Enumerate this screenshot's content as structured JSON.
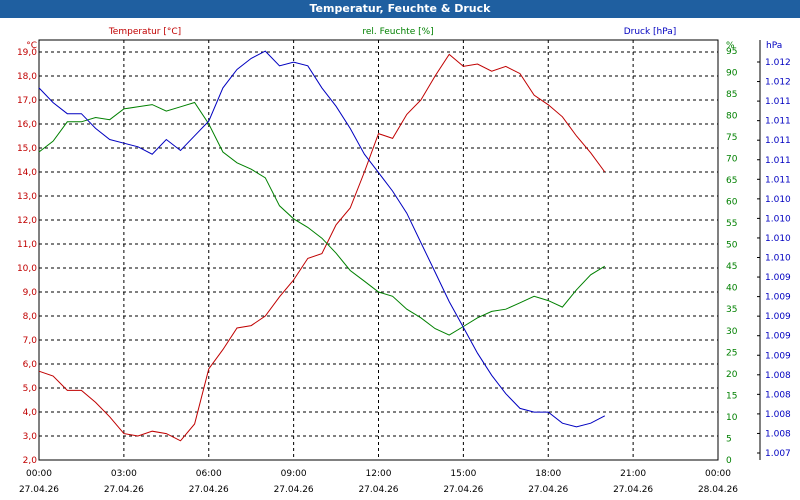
{
  "window": {
    "title": "Temperatur, Feuchte & Druck"
  },
  "chart_data": {
    "type": "line",
    "title": "Temperatur, Feuchte & Druck",
    "colors": {
      "temperature": "#c00000",
      "humidity": "#008000",
      "pressure": "#0000c0",
      "titlebar": "#1f5fa0"
    },
    "x_axis": {
      "range_hours": [
        0,
        24
      ],
      "time_labels": [
        "00:00",
        "03:00",
        "06:00",
        "09:00",
        "12:00",
        "15:00",
        "18:00",
        "21:00",
        "00:00"
      ],
      "date_labels": [
        "27.04.26",
        "27.04.26",
        "27.04.26",
        "27.04.26",
        "27.04.26",
        "27.04.26",
        "27.04.26",
        "27.04.26",
        "28.04.26"
      ]
    },
    "axes": {
      "temperature": {
        "label": "Temperatur [°C]",
        "unit": "°C",
        "ylim": [
          2.0,
          19.5
        ],
        "ticks": [
          "2,0",
          "3,0",
          "4,0",
          "5,0",
          "6,0",
          "7,0",
          "8,0",
          "9,0",
          "10,0",
          "11,0",
          "12,0",
          "13,0",
          "14,0",
          "15,0",
          "16,0",
          "17,0",
          "18,0",
          "19,0"
        ]
      },
      "humidity": {
        "label": "rel. Feuchte [%]",
        "unit": "%",
        "ylim": [
          0,
          97.5
        ],
        "ticks": [
          "0",
          "5",
          "10",
          "15",
          "20",
          "25",
          "30",
          "35",
          "40",
          "45",
          "50",
          "55",
          "60",
          "65",
          "70",
          "75",
          "80",
          "85",
          "90",
          "95"
        ]
      },
      "pressure": {
        "label": "Druck [hPa]",
        "unit": "hPa",
        "ylim": [
          1.0067,
          1.0124
        ],
        "ticks": [
          "1.007",
          "1.008",
          "1.008",
          "1.008",
          "1.008",
          "1.009",
          "1.009",
          "1.009",
          "1.009",
          "1.009",
          "1.010",
          "1.010",
          "1.010",
          "1.010",
          "1.011",
          "1.011",
          "1.011",
          "1.011",
          "1.011",
          "1.012",
          "1.012"
        ]
      }
    },
    "series": [
      {
        "name": "Temperatur [°C]",
        "axis": "temperature",
        "x": [
          0,
          0.5,
          1,
          1.5,
          2,
          2.5,
          3,
          3.5,
          4,
          4.5,
          5,
          5.5,
          6,
          6.5,
          7,
          7.5,
          8,
          8.5,
          9,
          9.5,
          10,
          10.5,
          11,
          11.5,
          12,
          12.5,
          13,
          13.5,
          14,
          14.5,
          15,
          15.5,
          16,
          16.5,
          17,
          17.5,
          18,
          18.5,
          19,
          19.5,
          20
        ],
        "values": [
          5.7,
          5.5,
          4.9,
          4.9,
          4.4,
          3.8,
          3.1,
          3.0,
          3.2,
          3.1,
          2.8,
          3.5,
          5.8,
          6.6,
          7.5,
          7.6,
          8.0,
          8.8,
          9.5,
          10.4,
          10.6,
          11.8,
          12.5,
          14.0,
          15.6,
          15.4,
          16.4,
          17.0,
          18.0,
          18.9,
          18.4,
          18.5,
          18.2,
          18.4,
          18.1,
          17.2,
          16.8,
          16.3,
          15.5,
          14.8,
          14.0
        ]
      },
      {
        "name": "rel. Feuchte [%]",
        "axis": "humidity",
        "x": [
          0,
          0.5,
          1,
          1.5,
          2,
          2.5,
          3,
          3.5,
          4,
          4.5,
          5,
          5.5,
          6,
          6.5,
          7,
          7.5,
          8,
          8.5,
          9,
          9.5,
          10,
          10.5,
          11,
          11.5,
          12,
          12.5,
          13,
          13.5,
          14,
          14.5,
          15,
          15.5,
          16,
          16.5,
          17,
          17.5,
          18,
          18.5,
          19,
          19.5,
          20
        ],
        "values": [
          71.5,
          74,
          78.5,
          78.5,
          79.5,
          79,
          81.5,
          82,
          82.5,
          81,
          82,
          83,
          78,
          71.5,
          69,
          67.5,
          65.5,
          59,
          56,
          54,
          51.5,
          48,
          44,
          41.5,
          39,
          38,
          35,
          33,
          30.5,
          29,
          31,
          33,
          34.5,
          35,
          36.5,
          38,
          37,
          35.5,
          39.5,
          43,
          45
        ]
      },
      {
        "name": "Druck [hPa]",
        "axis": "pressure",
        "x": [
          0,
          0.5,
          1,
          1.5,
          2,
          2.5,
          3,
          3.5,
          4,
          4.5,
          5,
          5.5,
          6,
          6.5,
          7,
          7.5,
          8,
          8.5,
          9,
          9.5,
          10,
          10.5,
          11,
          11.5,
          12,
          12.5,
          13,
          13.5,
          14,
          14.5,
          15,
          15.5,
          16,
          16.5,
          17,
          17.5,
          18,
          18.5,
          19,
          19.5,
          20
        ],
        "values": [
          1.01175,
          1.01155,
          1.0114,
          1.0114,
          1.0112,
          1.01105,
          1.011,
          1.01095,
          1.01085,
          1.01105,
          1.0109,
          1.0111,
          1.0113,
          1.01175,
          1.012,
          1.01215,
          1.01225,
          1.01205,
          1.0121,
          1.01205,
          1.01175,
          1.0115,
          1.0112,
          1.01085,
          1.0106,
          1.01035,
          1.01005,
          1.00965,
          1.00925,
          1.00885,
          1.0085,
          1.00815,
          1.00785,
          1.0076,
          1.0074,
          1.00735,
          1.00735,
          1.0072,
          1.00715,
          1.0072,
          1.0073
        ]
      }
    ]
  }
}
